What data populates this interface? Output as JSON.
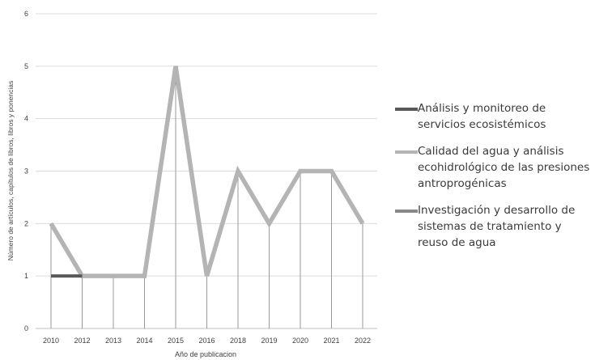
{
  "chart_data": {
    "type": "line",
    "categories": [
      "2010",
      "2012",
      "2013",
      "2014",
      "2015",
      "2016",
      "2018",
      "2019",
      "2020",
      "2021",
      "2022"
    ],
    "xlabel": "Año de publicacion",
    "ylabel": "Número de artículos, capítulos de libros, libros y ponencias",
    "ylim": [
      0,
      6
    ],
    "yticks": [
      "0",
      "1",
      "2",
      "3",
      "4",
      "5",
      "6"
    ],
    "grid": true,
    "legend_position": "right",
    "series": [
      {
        "name": "Análisis y monitoreo de servicios ecosistémicos",
        "color": "#595959",
        "values": [
          1,
          1,
          null,
          null,
          null,
          null,
          null,
          null,
          null,
          null,
          null
        ]
      },
      {
        "name": "Calidad del agua y análisis ecohidrológico de las presiones antroprogénicas",
        "color": "#b4b4b4",
        "values": [
          2,
          1,
          1,
          1,
          5,
          1,
          3,
          2,
          3,
          3,
          2
        ]
      },
      {
        "name": "Investigación y desarrollo de sistemas de tratamiento y reuso de agua",
        "color": "#888888",
        "values": [
          null,
          null,
          null,
          null,
          null,
          null,
          null,
          null,
          null,
          null,
          null
        ]
      }
    ]
  }
}
